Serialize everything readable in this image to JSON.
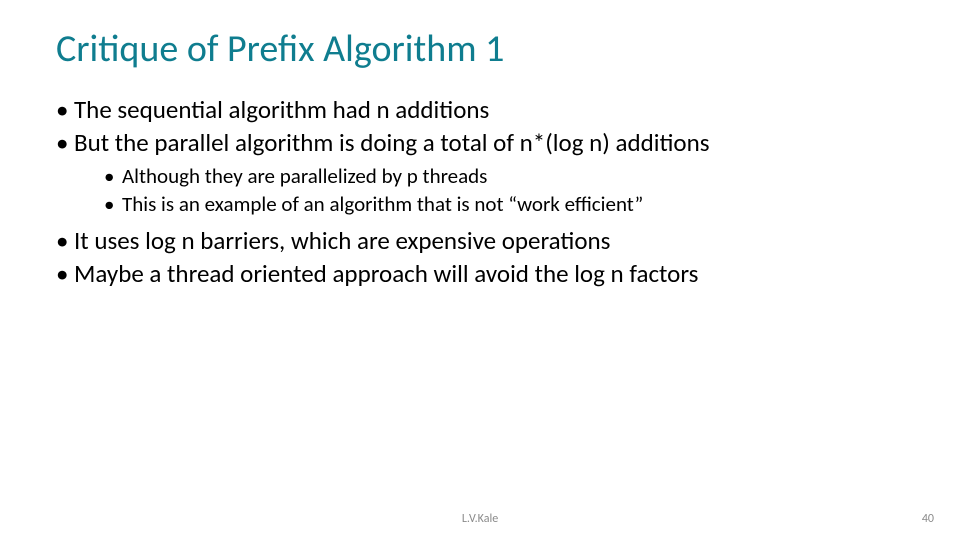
{
  "colors": {
    "title": "#0f7d8f",
    "body_text": "#000000",
    "footer_text": "#8a8a8a",
    "background": "#ffffff"
  },
  "typography": {
    "title_fontsize": 38,
    "level1_fontsize": 25,
    "level2_fontsize": 21,
    "footer_fontsize": 12,
    "font_family": "Calibri"
  },
  "title": "Critique of Prefix Algorithm 1",
  "bullets": [
    {
      "text": "The sequential algorithm had n additions"
    },
    {
      "text": "But the parallel algorithm is doing a total of n*(log n) additions",
      "children": [
        {
          "text": "Although they are parallelized by p threads"
        },
        {
          "text": "This is an example of an algorithm that is not “work efficient”"
        }
      ]
    },
    {
      "text": "It uses log n barriers, which are expensive operations"
    },
    {
      "text": "Maybe a thread oriented approach will avoid the log n factors"
    }
  ],
  "footer": {
    "author": "L.V.Kale",
    "page_number": "40"
  }
}
